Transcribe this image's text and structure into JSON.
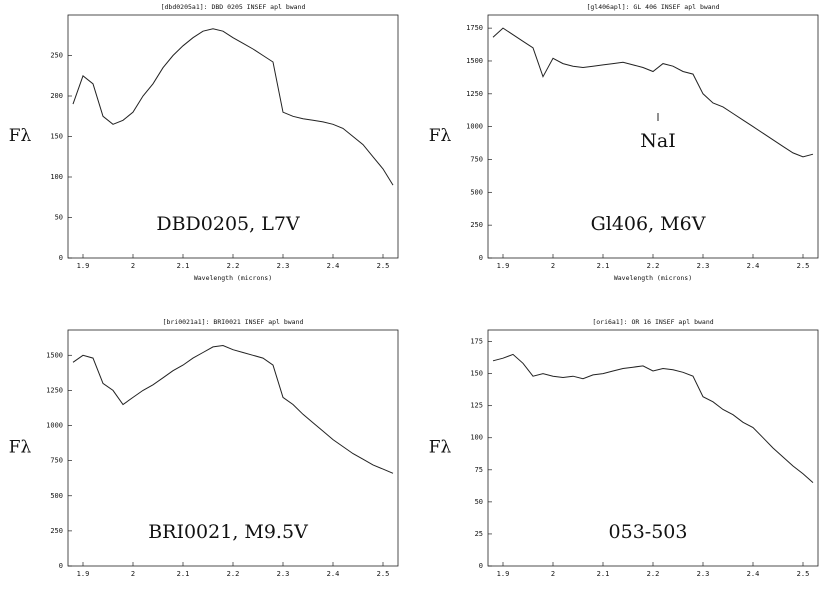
{
  "chart_data": [
    {
      "type": "line",
      "title": "[dbd0205a1]: DBD 0205 INSEF apl bwand",
      "xlabel": "Wavelength (microns)",
      "ylabel": "Fλ",
      "label": "DBD0205, L7V",
      "xlim": [
        1.87,
        2.53
      ],
      "xticks": [
        1.9,
        2,
        2.1,
        2.2,
        2.3,
        2.4,
        2.5
      ],
      "ylim": [
        0,
        300
      ],
      "yticks": [
        0,
        50,
        100,
        150,
        200,
        250
      ],
      "x": [
        1.88,
        1.9,
        1.92,
        1.94,
        1.96,
        1.98,
        2.0,
        2.02,
        2.04,
        2.06,
        2.08,
        2.1,
        2.12,
        2.14,
        2.16,
        2.18,
        2.2,
        2.22,
        2.24,
        2.26,
        2.28,
        2.3,
        2.32,
        2.34,
        2.36,
        2.38,
        2.4,
        2.42,
        2.44,
        2.46,
        2.48,
        2.5,
        2.52
      ],
      "series": [
        {
          "color": "#222",
          "values": [
            190,
            225,
            215,
            175,
            165,
            170,
            180,
            200,
            215,
            235,
            250,
            262,
            272,
            280,
            283,
            280,
            272,
            265,
            258,
            250,
            242,
            180,
            175,
            172,
            170,
            168,
            165,
            160,
            150,
            140,
            125,
            110,
            90
          ]
        }
      ]
    },
    {
      "type": "line",
      "title": "[gl406apl]: GL 406 INSEF apl bwand",
      "xlabel": "Wavelength (microns)",
      "ylabel": "Fλ",
      "label": "Gl406, M6V",
      "annotations": [
        {
          "text": "NaI",
          "x": 2.21
        }
      ],
      "xlim": [
        1.87,
        2.53
      ],
      "xticks": [
        1.9,
        2,
        2.1,
        2.2,
        2.3,
        2.4,
        2.5
      ],
      "ylim": [
        0,
        1850
      ],
      "yticks": [
        0,
        250,
        500,
        750,
        1000,
        1250,
        1500,
        1750
      ],
      "x": [
        1.88,
        1.9,
        1.92,
        1.94,
        1.96,
        1.98,
        2.0,
        2.02,
        2.04,
        2.06,
        2.08,
        2.1,
        2.12,
        2.14,
        2.16,
        2.18,
        2.2,
        2.22,
        2.24,
        2.26,
        2.28,
        2.3,
        2.32,
        2.34,
        2.36,
        2.38,
        2.4,
        2.42,
        2.44,
        2.46,
        2.48,
        2.5,
        2.52
      ],
      "series": [
        {
          "color": "#222",
          "values": [
            1680,
            1750,
            1700,
            1650,
            1600,
            1380,
            1520,
            1480,
            1460,
            1450,
            1460,
            1470,
            1480,
            1490,
            1470,
            1450,
            1420,
            1480,
            1460,
            1420,
            1400,
            1250,
            1180,
            1150,
            1100,
            1050,
            1000,
            950,
            900,
            850,
            800,
            770,
            790
          ]
        }
      ]
    },
    {
      "type": "line",
      "title": "[bri0021a1]: BRI0021 INSEF apl bwand",
      "ylabel": "Fλ",
      "label": "BRI0021, M9.5V",
      "xlim": [
        1.87,
        2.53
      ],
      "xticks": [
        1.9,
        2,
        2.1,
        2.2,
        2.3,
        2.4,
        2.5
      ],
      "ylim": [
        0,
        1680
      ],
      "yticks": [
        0,
        250,
        500,
        750,
        1000,
        1250,
        1500
      ],
      "x": [
        1.88,
        1.9,
        1.92,
        1.94,
        1.96,
        1.98,
        2.0,
        2.02,
        2.04,
        2.06,
        2.08,
        2.1,
        2.12,
        2.14,
        2.16,
        2.18,
        2.2,
        2.22,
        2.24,
        2.26,
        2.28,
        2.3,
        2.32,
        2.34,
        2.36,
        2.38,
        2.4,
        2.42,
        2.44,
        2.46,
        2.48,
        2.5,
        2.52
      ],
      "series": [
        {
          "color": "#222",
          "values": [
            1450,
            1500,
            1480,
            1300,
            1250,
            1150,
            1200,
            1250,
            1290,
            1340,
            1390,
            1430,
            1480,
            1520,
            1560,
            1570,
            1540,
            1520,
            1500,
            1480,
            1430,
            1200,
            1150,
            1080,
            1020,
            960,
            900,
            850,
            800,
            760,
            720,
            690,
            660
          ]
        }
      ]
    },
    {
      "type": "line",
      "title": "[ori6a1]: OR 16 INSEF apl bwand",
      "ylabel": "Fλ",
      "label": "053-503",
      "xlim": [
        1.87,
        2.53
      ],
      "xticks": [
        1.9,
        2,
        2.1,
        2.2,
        2.3,
        2.4,
        2.5
      ],
      "ylim": [
        0,
        184
      ],
      "yticks": [
        0,
        25,
        50,
        75,
        100,
        125,
        150,
        175
      ],
      "x": [
        1.88,
        1.9,
        1.92,
        1.94,
        1.96,
        1.98,
        2.0,
        2.02,
        2.04,
        2.06,
        2.08,
        2.1,
        2.12,
        2.14,
        2.16,
        2.18,
        2.2,
        2.22,
        2.24,
        2.26,
        2.28,
        2.3,
        2.32,
        2.34,
        2.36,
        2.38,
        2.4,
        2.42,
        2.44,
        2.46,
        2.48,
        2.5,
        2.52
      ],
      "series": [
        {
          "color": "#222",
          "values": [
            160,
            162,
            165,
            158,
            148,
            150,
            148,
            147,
            148,
            146,
            149,
            150,
            152,
            154,
            155,
            156,
            152,
            154,
            153,
            151,
            148,
            132,
            128,
            122,
            118,
            112,
            108,
            100,
            92,
            85,
            78,
            72,
            65
          ]
        }
      ]
    }
  ]
}
